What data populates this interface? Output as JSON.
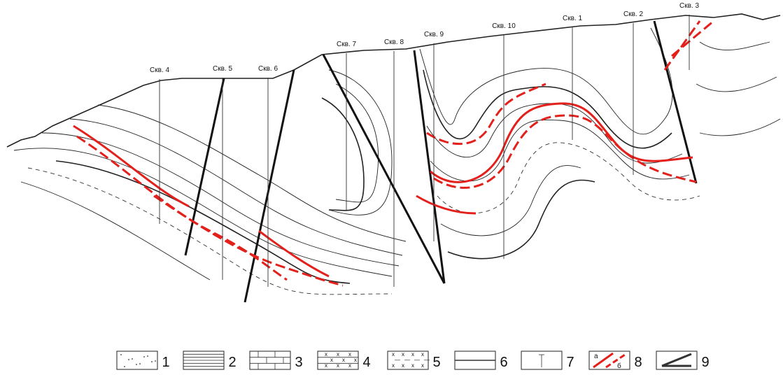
{
  "boreholes": [
    {
      "label": "Скв. 4"
    },
    {
      "label": "Скв. 5"
    },
    {
      "label": "Скв. 6"
    },
    {
      "label": "Скв. 7"
    },
    {
      "label": "Скв. 8"
    },
    {
      "label": "Скв. 9"
    },
    {
      "label": "Скв. 10"
    },
    {
      "label": "Скв. 1"
    },
    {
      "label": "Скв. 2"
    },
    {
      "label": "Скв. 3"
    }
  ],
  "legend": [
    {
      "label": "1"
    },
    {
      "label": "2"
    },
    {
      "label": "3"
    },
    {
      "label": "4"
    },
    {
      "label": "5"
    },
    {
      "label": "6"
    },
    {
      "label": "7"
    },
    {
      "label": "8",
      "sublabels": [
        "а",
        "б"
      ]
    },
    {
      "label": "9"
    }
  ]
}
